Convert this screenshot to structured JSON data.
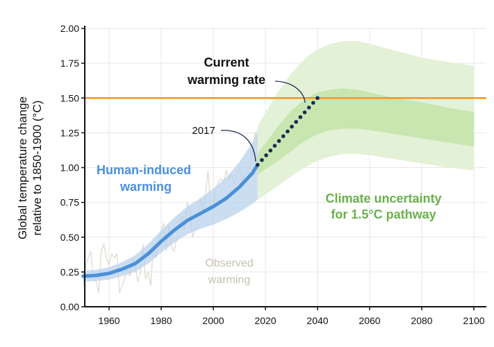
{
  "chart_data": {
    "type": "line",
    "ylabel": "Global temperature change relative to 1850-1900 (°C)",
    "ylabel_lines": [
      "Global temperature change",
      "relative to 1850-1900 (°C)"
    ],
    "xlim": [
      1950,
      2102
    ],
    "ylim": [
      0,
      2.0
    ],
    "grid": true,
    "x_ticks": [
      "1960",
      "1980",
      "2000",
      "2020",
      "2040",
      "2060",
      "2080",
      "2100"
    ],
    "y_ticks": [
      "0.00",
      "0.25",
      "0.50",
      "0.75",
      "1.00",
      "1.25",
      "1.50",
      "1.75",
      "2.00"
    ],
    "threshold": {
      "value": 1.5,
      "color": "#f7931e",
      "label": "1.50"
    },
    "human_induced": {
      "label_lines": [
        "Human-induced",
        "warming"
      ],
      "color": "#4a90d9",
      "band_color": "#b9d1ec",
      "x": [
        1950,
        1955,
        1960,
        1965,
        1970,
        1975,
        1980,
        1985,
        1990,
        1995,
        2000,
        2005,
        2010,
        2015,
        2017
      ],
      "y": [
        0.22,
        0.225,
        0.24,
        0.27,
        0.31,
        0.38,
        0.47,
        0.55,
        0.62,
        0.67,
        0.72,
        0.78,
        0.86,
        0.96,
        1.02
      ],
      "band_half_width": [
        0.04,
        0.04,
        0.045,
        0.05,
        0.06,
        0.07,
        0.08,
        0.09,
        0.1,
        0.11,
        0.13,
        0.15,
        0.18,
        0.22,
        0.25
      ]
    },
    "observed": {
      "label_lines": [
        "Observed",
        "warming"
      ],
      "color": "#ddd8cc",
      "x_start": 1950,
      "y": [
        0.15,
        0.3,
        0.35,
        0.4,
        0.2,
        0.18,
        0.1,
        0.4,
        0.45,
        0.35,
        0.3,
        0.38,
        0.35,
        0.38,
        0.1,
        0.15,
        0.2,
        0.28,
        0.22,
        0.35,
        0.3,
        0.18,
        0.25,
        0.45,
        0.2,
        0.25,
        0.15,
        0.45,
        0.35,
        0.45,
        0.55,
        0.6,
        0.4,
        0.6,
        0.42,
        0.4,
        0.5,
        0.62,
        0.65,
        0.55,
        0.75,
        0.7,
        0.5,
        0.55,
        0.62,
        0.78,
        0.68,
        0.8,
        0.98,
        0.7,
        0.72,
        0.85,
        0.9,
        0.92,
        0.9,
        0.98,
        0.92,
        0.95,
        0.88,
        0.95,
        1.0,
        0.9,
        0.95,
        0.98,
        1.0,
        1.1,
        1.25,
        1.18
      ]
    },
    "current_rate": {
      "label_lines": [
        "Current",
        "warming rate"
      ],
      "color": "#1a2a55",
      "x": [
        2017,
        2040
      ],
      "y": [
        1.02,
        1.5
      ],
      "annotation_2017": "2017"
    },
    "uncertainty": {
      "label_lines": [
        "Climate uncertainty",
        "for 1.5°C pathway"
      ],
      "label_color": "#6ab04c",
      "outer_color": "#e3f1d6",
      "inner_color": "#c8e6b0",
      "x": [
        2017,
        2025,
        2030,
        2035,
        2040,
        2045,
        2050,
        2055,
        2060,
        2070,
        2080,
        2090,
        2100
      ],
      "outer_upper": [
        1.3,
        1.55,
        1.68,
        1.78,
        1.85,
        1.89,
        1.91,
        1.91,
        1.89,
        1.84,
        1.79,
        1.76,
        1.73
      ],
      "outer_lower": [
        0.77,
        0.87,
        0.94,
        1.0,
        1.05,
        1.08,
        1.1,
        1.1,
        1.09,
        1.06,
        1.03,
        1.0,
        0.98
      ],
      "inner_upper": [
        1.1,
        1.3,
        1.41,
        1.49,
        1.54,
        1.56,
        1.57,
        1.56,
        1.54,
        1.5,
        1.47,
        1.43,
        1.4
      ],
      "inner_lower": [
        0.95,
        1.05,
        1.12,
        1.19,
        1.24,
        1.27,
        1.28,
        1.28,
        1.27,
        1.24,
        1.21,
        1.18,
        1.15
      ]
    }
  }
}
